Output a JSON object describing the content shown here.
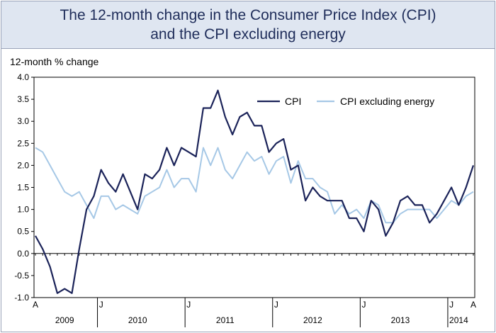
{
  "title_line1": "The 12-month change in the Consumer Price Index (CPI)",
  "title_line2": "and the CPI excluding energy",
  "chart_data": {
    "type": "line",
    "ylabel": "12-month % change",
    "ylim": [
      -1.0,
      4.0
    ],
    "yticks": [
      "4.0",
      "3.5",
      "3.0",
      "2.5",
      "2.0",
      "1.5",
      "1.0",
      "0.5",
      "0.0",
      "-0.5",
      "-1.0"
    ],
    "x": [
      "2009-04",
      "2009-05",
      "2009-06",
      "2009-07",
      "2009-08",
      "2009-09",
      "2009-10",
      "2009-11",
      "2009-12",
      "2010-01",
      "2010-02",
      "2010-03",
      "2010-04",
      "2010-05",
      "2010-06",
      "2010-07",
      "2010-08",
      "2010-09",
      "2010-10",
      "2010-11",
      "2010-12",
      "2011-01",
      "2011-02",
      "2011-03",
      "2011-04",
      "2011-05",
      "2011-06",
      "2011-07",
      "2011-08",
      "2011-09",
      "2011-10",
      "2011-11",
      "2011-12",
      "2012-01",
      "2012-02",
      "2012-03",
      "2012-04",
      "2012-05",
      "2012-06",
      "2012-07",
      "2012-08",
      "2012-09",
      "2012-10",
      "2012-11",
      "2012-12",
      "2013-01",
      "2013-02",
      "2013-03",
      "2013-04",
      "2013-05",
      "2013-06",
      "2013-07",
      "2013-08",
      "2013-09",
      "2013-10",
      "2013-11",
      "2013-12",
      "2014-01",
      "2014-02",
      "2014-03",
      "2014-04"
    ],
    "x_tick_labels": [
      {
        "x": "2009-04",
        "label": "A"
      },
      {
        "x": "2010-01",
        "label": "J"
      },
      {
        "x": "2011-01",
        "label": "J"
      },
      {
        "x": "2012-01",
        "label": "J"
      },
      {
        "x": "2013-01",
        "label": "J"
      },
      {
        "x": "2014-01",
        "label": "J"
      },
      {
        "x": "2014-04",
        "label": "A"
      }
    ],
    "year_labels": [
      {
        "x": "2009-08",
        "label": "2009"
      },
      {
        "x": "2010-06",
        "label": "2010"
      },
      {
        "x": "2011-06",
        "label": "2011"
      },
      {
        "x": "2012-06",
        "label": "2012"
      },
      {
        "x": "2013-06",
        "label": "2013"
      },
      {
        "x": "2014-02",
        "label": "2014"
      }
    ],
    "series": [
      {
        "name": "CPI",
        "color": "#1b2359",
        "values": [
          0.4,
          0.1,
          -0.3,
          -0.9,
          -0.8,
          -0.9,
          0.1,
          1.0,
          1.3,
          1.9,
          1.6,
          1.4,
          1.8,
          1.4,
          1.0,
          1.8,
          1.7,
          1.9,
          2.4,
          2.0,
          2.4,
          2.3,
          2.2,
          3.3,
          3.3,
          3.7,
          3.1,
          2.7,
          3.1,
          3.2,
          2.9,
          2.9,
          2.3,
          2.5,
          2.6,
          1.9,
          2.0,
          1.2,
          1.5,
          1.3,
          1.2,
          1.2,
          1.2,
          0.8,
          0.8,
          0.5,
          1.2,
          1.0,
          0.4,
          0.7,
          1.2,
          1.3,
          1.1,
          1.1,
          0.7,
          0.9,
          1.2,
          1.5,
          1.1,
          1.5,
          2.0
        ]
      },
      {
        "name": "CPI excluding energy",
        "color": "#a6c8e6",
        "values": [
          2.4,
          2.3,
          2.0,
          1.7,
          1.4,
          1.3,
          1.4,
          1.1,
          0.8,
          1.3,
          1.3,
          1.0,
          1.1,
          1.0,
          0.9,
          1.3,
          1.4,
          1.5,
          1.9,
          1.5,
          1.7,
          1.7,
          1.4,
          2.4,
          2.0,
          2.4,
          1.9,
          1.7,
          2.0,
          2.3,
          2.1,
          2.2,
          1.8,
          2.1,
          2.2,
          1.6,
          2.1,
          1.7,
          1.7,
          1.5,
          1.4,
          0.9,
          1.1,
          0.9,
          1.0,
          0.8,
          1.2,
          1.1,
          0.7,
          0.7,
          0.9,
          1.0,
          1.0,
          1.0,
          1.0,
          0.8,
          1.0,
          1.2,
          1.1,
          1.3,
          1.4
        ]
      }
    ],
    "grid": false,
    "legend_position": "top-right"
  }
}
